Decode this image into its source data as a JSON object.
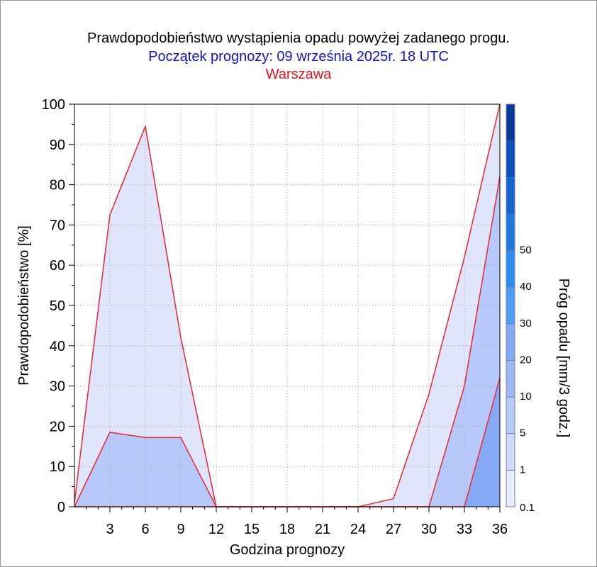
{
  "chart_data": {
    "type": "area",
    "title": "Prawdopodobieństwo wystąpienia opadu powyżej zadanego progu.",
    "subtitle": "Początek prognozy: 09 września 2025r. 18 UTC",
    "location": "Warszawa",
    "xlabel": "Godzina prognozy",
    "ylabel": "Prawdopodobieństwo [%]",
    "colorbar_label": "Próg opadu [mm/3 godz.]",
    "xlim": [
      0,
      36
    ],
    "ylim": [
      0,
      100
    ],
    "x_ticks": [
      3,
      6,
      9,
      12,
      15,
      18,
      21,
      24,
      27,
      30,
      33,
      36
    ],
    "y_ticks": [
      0,
      10,
      20,
      30,
      40,
      50,
      60,
      70,
      80,
      90,
      100
    ],
    "grid": true,
    "x": [
      0,
      3,
      6,
      9,
      12,
      15,
      18,
      21,
      24,
      27,
      30,
      33,
      36
    ],
    "series": [
      {
        "name": "0.1",
        "color": "#dfe6fb",
        "values": [
          1,
          72.5,
          94.5,
          42,
          0,
          0,
          0,
          0,
          0,
          2,
          28,
          62,
          100
        ]
      },
      {
        "name": "1",
        "color": "#b7c8fa",
        "values": [
          0,
          18.5,
          17.2,
          17.2,
          0,
          0,
          0,
          0,
          0,
          0,
          0,
          30,
          82
        ]
      },
      {
        "name": "5",
        "color": "#86a9f5",
        "values": [
          0,
          0,
          0,
          0,
          0,
          0,
          0,
          0,
          0,
          0,
          0,
          0,
          32
        ]
      }
    ],
    "line_color": "#e8303c",
    "colorbar": {
      "labels": [
        "0.1",
        "1",
        "5",
        "10",
        "20",
        "30",
        "40",
        "50"
      ],
      "colors": [
        "#e8edfc",
        "#d0dbfa",
        "#b7c8fa",
        "#9fb8f6",
        "#86a9f5",
        "#4d9ef2",
        "#2b8ef0",
        "#1f78dd",
        "#1565cf",
        "#0c4fb8",
        "#06399a"
      ]
    }
  }
}
